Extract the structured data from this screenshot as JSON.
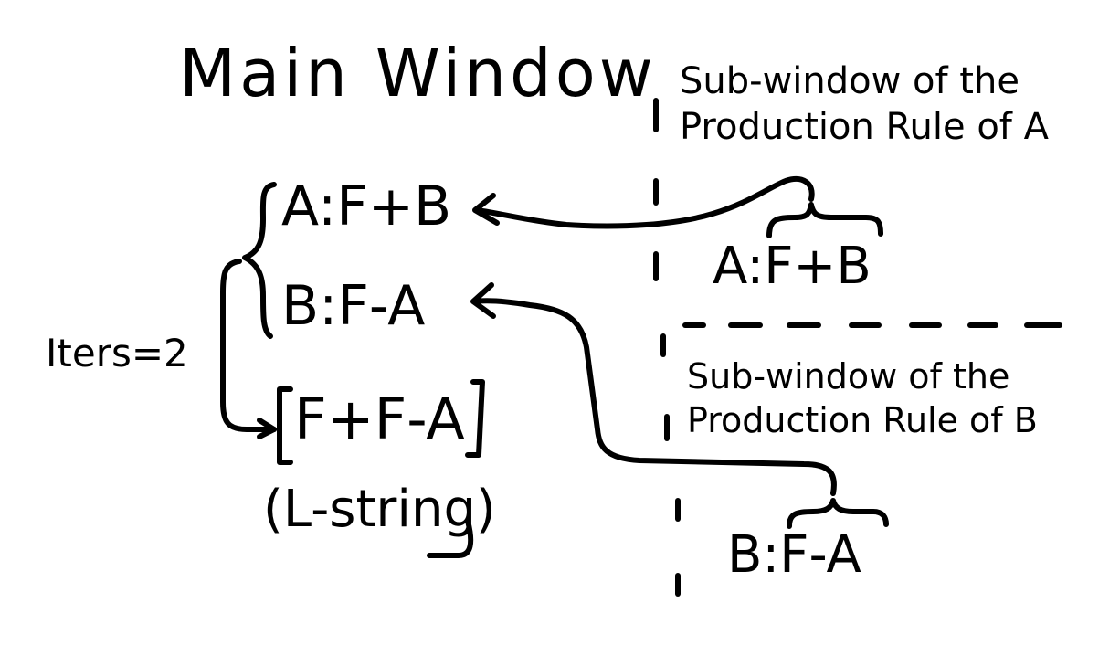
{
  "main_window": {
    "title": "Main Window",
    "rules": [
      {
        "text": "A:F+B"
      },
      {
        "text": "B:F-A"
      }
    ],
    "iterations_label": "Iters=2",
    "l_string": "F+F-A",
    "l_string_caption": "(L-string)"
  },
  "sub_windows": [
    {
      "title_line1": "Sub-window of the",
      "title_line2": "Production Rule of A",
      "rule_head": "A:",
      "rule_body": "F+B"
    },
    {
      "title_line1": "Sub-window of the",
      "title_line2": "Production Rule of B",
      "rule_head": "B:",
      "rule_body": "F-A"
    }
  ],
  "colors": {
    "ink": "#000000",
    "background": "#ffffff"
  }
}
